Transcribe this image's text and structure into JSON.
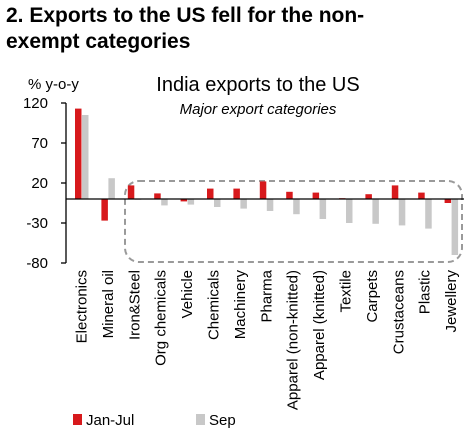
{
  "heading": {
    "line1": "2. Exports to the US fell for the non-",
    "line2": "exempt categories"
  },
  "chart_data": {
    "type": "bar",
    "title": "India exports to the US",
    "subtitle": "Major export categories",
    "ylabel": "% y-o-y",
    "ylim": [
      -80,
      120
    ],
    "yticks": [
      120,
      70,
      20,
      -30,
      -80
    ],
    "grid": false,
    "legend_position": "bottom",
    "categories": [
      "Electronics",
      "Mineral oil",
      "Iron&Steel",
      "Org chemicals",
      "Vehicle",
      "Chemicals",
      "Machinery",
      "Pharma",
      "Apparel (non-knitted)",
      "Apparel (knitted)",
      "Textile",
      "Carpets",
      "Crustaceans",
      "Plastic",
      "Jewellery"
    ],
    "series": [
      {
        "name": "Jan-Jul",
        "color": "#d7191c",
        "values": [
          113,
          -27,
          17,
          7,
          -3,
          13,
          13,
          22,
          9,
          8,
          1,
          6,
          17,
          8,
          -5
        ]
      },
      {
        "name": "Sep",
        "color": "#c8c8c8",
        "values": [
          105,
          26,
          0,
          -8,
          -7,
          -10,
          -12,
          -15,
          -19,
          -25,
          -30,
          -31,
          -33,
          -37,
          -70
        ]
      }
    ],
    "annotation": "dashed box highlighting non-exempt categories (Iron&Steel to Jewellery)"
  }
}
